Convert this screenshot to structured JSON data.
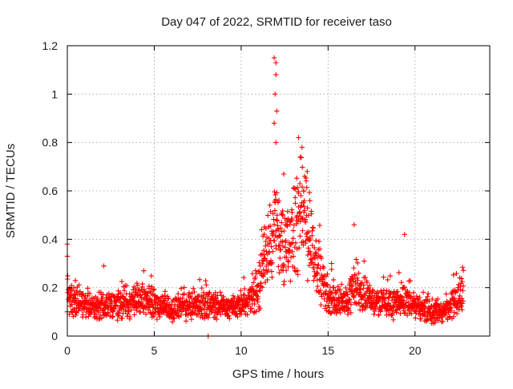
{
  "chart_data": {
    "type": "scatter",
    "title": "Day 047 of 2022, SRMTID for receiver taso",
    "xlabel": "GPS time / hours",
    "ylabel": "SRMTID / TECUs",
    "xlim": [
      0,
      24.3
    ],
    "ylim": [
      0,
      1.2
    ],
    "x_ticks": [
      0,
      5,
      10,
      15,
      20
    ],
    "y_ticks": [
      0,
      0.2,
      0.4,
      0.6,
      0.8,
      1,
      1.2
    ],
    "x_tick_labels": [
      "0",
      "5",
      "10",
      "15",
      "20"
    ],
    "y_tick_labels": [
      "0",
      "0.2",
      "0.4",
      "0.6",
      "0.8",
      "1",
      "1.2"
    ],
    "grid": true,
    "legend": "none",
    "series": [
      {
        "name": "SRMTID",
        "color": "#ff0000",
        "marker": "plus",
        "profile": [
          [
            0.0,
            0.16
          ],
          [
            0.5,
            0.15
          ],
          [
            1.0,
            0.13
          ],
          [
            1.5,
            0.12
          ],
          [
            2.0,
            0.13
          ],
          [
            2.5,
            0.12
          ],
          [
            3.0,
            0.13
          ],
          [
            3.5,
            0.13
          ],
          [
            4.0,
            0.14
          ],
          [
            4.5,
            0.15
          ],
          [
            5.0,
            0.14
          ],
          [
            5.5,
            0.12
          ],
          [
            6.0,
            0.11
          ],
          [
            6.5,
            0.12
          ],
          [
            7.0,
            0.12
          ],
          [
            7.5,
            0.13
          ],
          [
            8.0,
            0.13
          ],
          [
            8.5,
            0.13
          ],
          [
            9.0,
            0.12
          ],
          [
            9.5,
            0.12
          ],
          [
            10.0,
            0.13
          ],
          [
            10.5,
            0.15
          ],
          [
            11.0,
            0.2
          ],
          [
            11.5,
            0.38
          ],
          [
            12.0,
            0.45
          ],
          [
            12.5,
            0.36
          ],
          [
            13.0,
            0.42
          ],
          [
            13.5,
            0.5
          ],
          [
            14.0,
            0.4
          ],
          [
            14.5,
            0.25
          ],
          [
            15.0,
            0.16
          ],
          [
            15.5,
            0.15
          ],
          [
            16.0,
            0.14
          ],
          [
            16.5,
            0.2
          ],
          [
            17.0,
            0.17
          ],
          [
            17.5,
            0.15
          ],
          [
            18.0,
            0.14
          ],
          [
            18.5,
            0.13
          ],
          [
            19.0,
            0.14
          ],
          [
            19.5,
            0.15
          ],
          [
            20.0,
            0.12
          ],
          [
            20.5,
            0.11
          ],
          [
            21.0,
            0.1
          ],
          [
            21.5,
            0.1
          ],
          [
            22.0,
            0.12
          ],
          [
            22.5,
            0.17
          ],
          [
            22.8,
            0.18
          ]
        ],
        "notable_points": [
          [
            0.0,
            0.38
          ],
          [
            0.0,
            0.33
          ],
          [
            2.1,
            0.29
          ],
          [
            4.4,
            0.27
          ],
          [
            8.1,
            0.0
          ],
          [
            11.9,
            1.15
          ],
          [
            12.0,
            1.13
          ],
          [
            12.0,
            1.08
          ],
          [
            11.95,
            1.0
          ],
          [
            12.05,
            0.93
          ],
          [
            11.9,
            0.88
          ],
          [
            12.0,
            0.8
          ],
          [
            13.3,
            0.82
          ],
          [
            13.5,
            0.78
          ],
          [
            13.4,
            0.74
          ],
          [
            13.8,
            0.68
          ],
          [
            13.6,
            0.6
          ],
          [
            16.5,
            0.46
          ],
          [
            19.4,
            0.42
          ],
          [
            12.4,
            0.5
          ],
          [
            11.3,
            0.32
          ],
          [
            14.3,
            0.34
          ],
          [
            15.2,
            0.3
          ]
        ]
      }
    ]
  }
}
